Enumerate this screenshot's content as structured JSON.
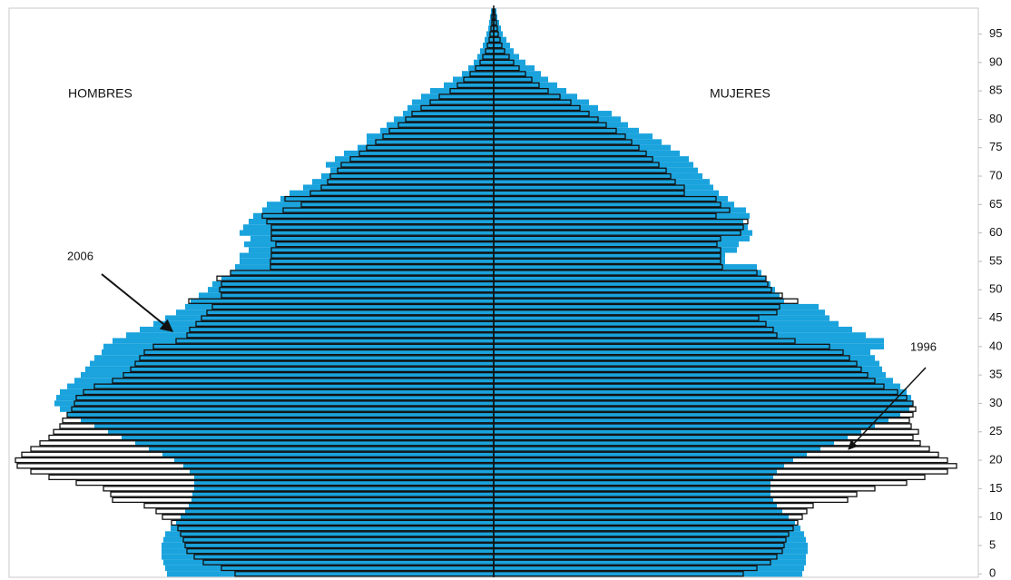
{
  "chart_data": {
    "type": "pyramid",
    "left_label": "HOMBRES",
    "right_label": "MUJERES",
    "y": [
      0,
      1,
      2,
      3,
      4,
      5,
      6,
      7,
      8,
      9,
      10,
      11,
      12,
      13,
      14,
      15,
      16,
      17,
      18,
      19,
      20,
      21,
      22,
      23,
      24,
      25,
      26,
      27,
      28,
      29,
      30,
      31,
      32,
      33,
      34,
      35,
      36,
      37,
      38,
      39,
      40,
      41,
      42,
      43,
      44,
      45,
      46,
      47,
      48,
      49,
      50,
      51,
      52,
      53,
      54,
      55,
      56,
      57,
      58,
      59,
      60,
      61,
      62,
      63,
      64,
      65,
      66,
      67,
      68,
      69,
      70,
      71,
      72,
      73,
      74,
      75,
      76,
      77,
      78,
      79,
      80,
      81,
      82,
      83,
      84,
      85,
      86,
      87,
      88,
      89,
      90,
      91,
      92,
      93,
      94,
      95,
      96,
      97,
      98,
      99
    ],
    "ylim": [
      -0.6,
      99.4
    ],
    "yticks": [
      0,
      5,
      10,
      15,
      20,
      25,
      30,
      35,
      40,
      45,
      50,
      55,
      60,
      65,
      70,
      75,
      80,
      85,
      90,
      95
    ],
    "xlim": [
      0,
      534
    ],
    "series": [
      {
        "name": "2006",
        "color": "#1aa3dd",
        "filled": true,
        "left": [
          360,
          362,
          364,
          366,
          366,
          366,
          364,
          362,
          356,
          350,
          345,
          340,
          336,
          333,
          332,
          330,
          330,
          330,
          335,
          342,
          352,
          365,
          380,
          395,
          410,
          425,
          440,
          455,
          470,
          478,
          484,
          482,
          478,
          470,
          462,
          455,
          450,
          445,
          440,
          432,
          430,
          420,
          405,
          390,
          375,
          362,
          350,
          340,
          334,
          325,
          315,
          310,
          300,
          290,
          285,
          280,
          280,
          270,
          275,
          268,
          280,
          276,
          270,
          265,
          255,
          250,
          235,
          225,
          210,
          200,
          190,
          180,
          185,
          175,
          165,
          150,
          140,
          140,
          125,
          118,
          110,
          100,
          95,
          90,
          80,
          70,
          55,
          45,
          35,
          28,
          22,
          18,
          15,
          12,
          10,
          8,
          6,
          5,
          4,
          3
        ],
        "right": [
          340,
          342,
          344,
          344,
          346,
          346,
          344,
          342,
          338,
          332,
          325,
          318,
          312,
          308,
          305,
          305,
          305,
          308,
          312,
          320,
          330,
          345,
          360,
          375,
          390,
          405,
          420,
          435,
          448,
          458,
          462,
          460,
          455,
          448,
          440,
          432,
          428,
          425,
          420,
          415,
          430,
          430,
          410,
          395,
          380,
          370,
          365,
          358,
          320,
          315,
          310,
          305,
          300,
          295,
          290,
          255,
          255,
          268,
          270,
          282,
          285,
          280,
          275,
          282,
          278,
          265,
          258,
          248,
          242,
          238,
          230,
          225,
          220,
          215,
          205,
          195,
          185,
          175,
          160,
          148,
          140,
          130,
          115,
          105,
          92,
          80,
          70,
          60,
          52,
          45,
          35,
          28,
          22,
          18,
          14,
          10,
          8,
          6,
          4,
          3
        ]
      },
      {
        "name": "1996",
        "color": "#111111",
        "filled": false,
        "left": [
          285,
          300,
          320,
          330,
          338,
          340,
          342,
          345,
          348,
          355,
          365,
          372,
          385,
          420,
          422,
          430,
          460,
          490,
          510,
          525,
          527,
          520,
          510,
          500,
          490,
          485,
          478,
          475,
          470,
          465,
          462,
          460,
          452,
          440,
          420,
          408,
          400,
          395,
          390,
          385,
          375,
          350,
          338,
          335,
          328,
          322,
          316,
          310,
          336,
          300,
          302,
          300,
          305,
          290,
          246,
          246,
          245,
          245,
          240,
          245,
          245,
          245,
          250,
          255,
          232,
          212,
          230,
          202,
          190,
          183,
          180,
          172,
          168,
          158,
          148,
          140,
          130,
          122,
          115,
          105,
          97,
          90,
          80,
          70,
          60,
          48,
          40,
          33,
          26,
          20,
          15,
          12,
          9,
          7,
          5,
          4,
          3,
          2,
          2,
          1
        ],
        "right": [
          275,
          290,
          305,
          312,
          318,
          320,
          322,
          325,
          330,
          335,
          340,
          345,
          352,
          390,
          400,
          420,
          455,
          475,
          500,
          510,
          500,
          490,
          480,
          470,
          462,
          468,
          460,
          458,
          462,
          465,
          462,
          455,
          445,
          430,
          420,
          412,
          405,
          400,
          392,
          385,
          370,
          332,
          312,
          308,
          300,
          292,
          312,
          315,
          335,
          318,
          306,
          302,
          300,
          290,
          252,
          250,
          250,
          250,
          246,
          250,
          272,
          275,
          280,
          245,
          260,
          250,
          245,
          210,
          210,
          200,
          195,
          190,
          182,
          175,
          168,
          160,
          152,
          145,
          135,
          124,
          115,
          105,
          95,
          85,
          73,
          60,
          50,
          42,
          35,
          28,
          22,
          17,
          12,
          9,
          7,
          5,
          4,
          3,
          2,
          1
        ]
      }
    ]
  }
}
